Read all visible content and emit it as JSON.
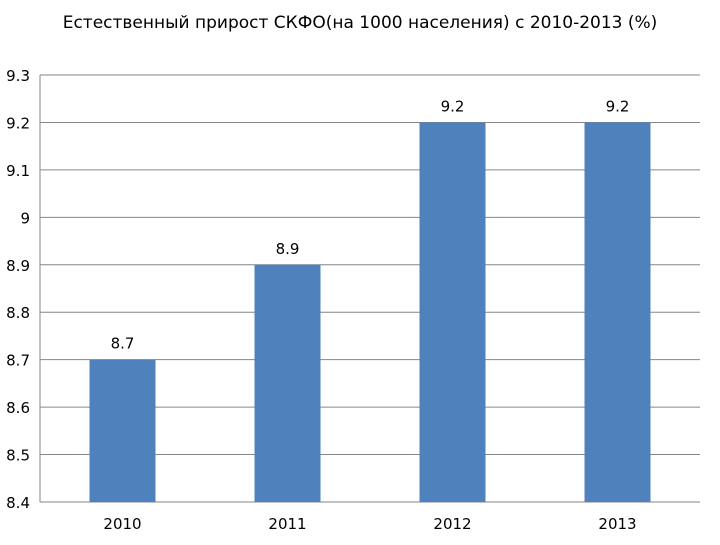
{
  "chart_data": {
    "type": "bar",
    "title": "Естественный прирост СКФО(на 1000 населения) с 2010-2013 (%)",
    "xlabel": "",
    "ylabel": "",
    "categories": [
      "2010",
      "2011",
      "2012",
      "2013"
    ],
    "values": [
      8.7,
      8.9,
      9.2,
      9.2
    ],
    "data_labels": [
      "8.7",
      "8.9",
      "9.2",
      "9.2"
    ],
    "ylim": [
      8.4,
      9.3
    ],
    "yticks": [
      8.4,
      8.5,
      8.6,
      8.7,
      8.8,
      8.9,
      9.0,
      9.1,
      9.2,
      9.3
    ],
    "ytick_labels": [
      "8.4",
      "8.5",
      "8.6",
      "8.7",
      "8.8",
      "8.9",
      "9",
      "9.1",
      "9.2",
      "9.3"
    ],
    "grid": true,
    "legend": "none",
    "bar_color": "#4F81BD",
    "grid_color": "#868686"
  }
}
